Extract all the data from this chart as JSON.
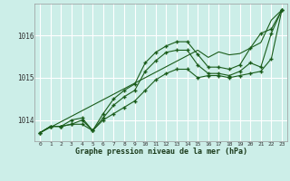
{
  "title": "Graphe pression niveau de la mer (hPa)",
  "bg_color": "#cceee8",
  "grid_color": "#ffffff",
  "line_color": "#1a5c1a",
  "x_labels": [
    "0",
    "1",
    "2",
    "3",
    "4",
    "5",
    "6",
    "7",
    "8",
    "9",
    "10",
    "11",
    "12",
    "13",
    "14",
    "15",
    "16",
    "17",
    "18",
    "19",
    "20",
    "21",
    "22",
    "23"
  ],
  "x_values": [
    0,
    1,
    2,
    3,
    4,
    5,
    6,
    7,
    8,
    9,
    10,
    11,
    12,
    13,
    14,
    15,
    16,
    17,
    18,
    19,
    20,
    21,
    22,
    23
  ],
  "ylim": [
    1013.5,
    1016.75
  ],
  "yticks": [
    1014,
    1015,
    1016
  ],
  "line1": [
    1013.7,
    1013.85,
    1013.85,
    1013.9,
    1013.9,
    1013.75,
    1014.0,
    1014.15,
    1014.3,
    1014.45,
    1014.7,
    1014.95,
    1015.1,
    1015.2,
    1015.2,
    1015.0,
    1015.05,
    1015.05,
    1015.0,
    1015.05,
    1015.1,
    1015.15,
    1015.45,
    1016.6
  ],
  "line2": [
    1013.7,
    1013.85,
    1013.85,
    1013.9,
    1014.0,
    1013.75,
    1014.05,
    1014.35,
    1014.55,
    1014.7,
    1015.15,
    1015.4,
    1015.6,
    1015.65,
    1015.65,
    1015.3,
    1015.1,
    1015.1,
    1015.05,
    1015.15,
    1015.35,
    1015.25,
    1016.05,
    1016.6
  ],
  "line3": [
    1013.7,
    1013.85,
    1013.85,
    1014.0,
    1014.05,
    1013.75,
    1014.15,
    1014.5,
    1014.7,
    1014.85,
    1015.35,
    1015.6,
    1015.75,
    1015.85,
    1015.85,
    1015.55,
    1015.25,
    1015.25,
    1015.2,
    1015.3,
    1015.7,
    1016.05,
    1016.15,
    1016.6
  ],
  "line_straight": [
    1013.7,
    1013.83,
    1013.96,
    1014.09,
    1014.22,
    1014.35,
    1014.48,
    1014.61,
    1014.74,
    1014.87,
    1015.0,
    1015.13,
    1015.26,
    1015.39,
    1015.52,
    1015.65,
    1015.48,
    1015.61,
    1015.54,
    1015.57,
    1015.7,
    1015.83,
    1016.36,
    1016.6
  ]
}
